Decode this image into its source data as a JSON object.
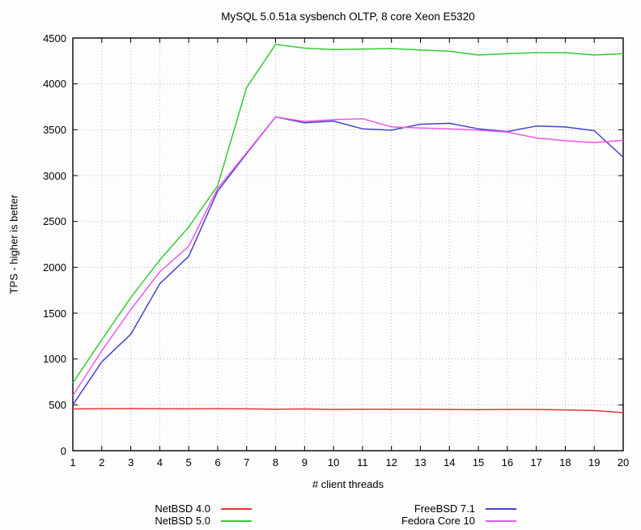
{
  "chart_data": {
    "type": "line",
    "title": "MySQL 5.0.51a sysbench OLTP, 8 core Xeon E5320",
    "xlabel": "# client threads",
    "ylabel": "TPS - higher is better",
    "x": [
      1,
      2,
      3,
      4,
      5,
      6,
      7,
      8,
      9,
      10,
      11,
      12,
      13,
      14,
      15,
      16,
      17,
      18,
      19,
      20
    ],
    "xlim": [
      1,
      20
    ],
    "ylim": [
      0,
      4500
    ],
    "ytick_step": 500,
    "grid": true,
    "legend_position": "bottom-outside-two-columns",
    "series": [
      {
        "name": "NetBSD 4.0",
        "color": "#ee3333",
        "values": [
          455,
          458,
          460,
          458,
          457,
          458,
          457,
          453,
          455,
          450,
          452,
          453,
          452,
          450,
          448,
          450,
          450,
          445,
          438,
          415
        ]
      },
      {
        "name": "NetBSD 5.0",
        "color": "#33cc33",
        "values": [
          740,
          1210,
          1670,
          2080,
          2440,
          2890,
          3960,
          4430,
          4390,
          4375,
          4380,
          4385,
          4370,
          4355,
          4315,
          4330,
          4340,
          4340,
          4315,
          4330
        ]
      },
      {
        "name": "FreeBSD 7.1",
        "color": "#4444cc",
        "values": [
          500,
          970,
          1270,
          1820,
          2120,
          2830,
          3240,
          3640,
          3575,
          3595,
          3510,
          3495,
          3560,
          3570,
          3510,
          3480,
          3540,
          3530,
          3490,
          3200
        ]
      },
      {
        "name": "Fedora Core 10",
        "color": "#ee55ee",
        "values": [
          600,
          1090,
          1540,
          1950,
          2230,
          2860,
          3250,
          3640,
          3590,
          3610,
          3620,
          3530,
          3520,
          3510,
          3495,
          3475,
          3410,
          3380,
          3360,
          3385
        ]
      }
    ],
    "style": {
      "grid_color": "#b8b8b8",
      "border_color": "#000000",
      "background": "#fdfdfd"
    }
  }
}
